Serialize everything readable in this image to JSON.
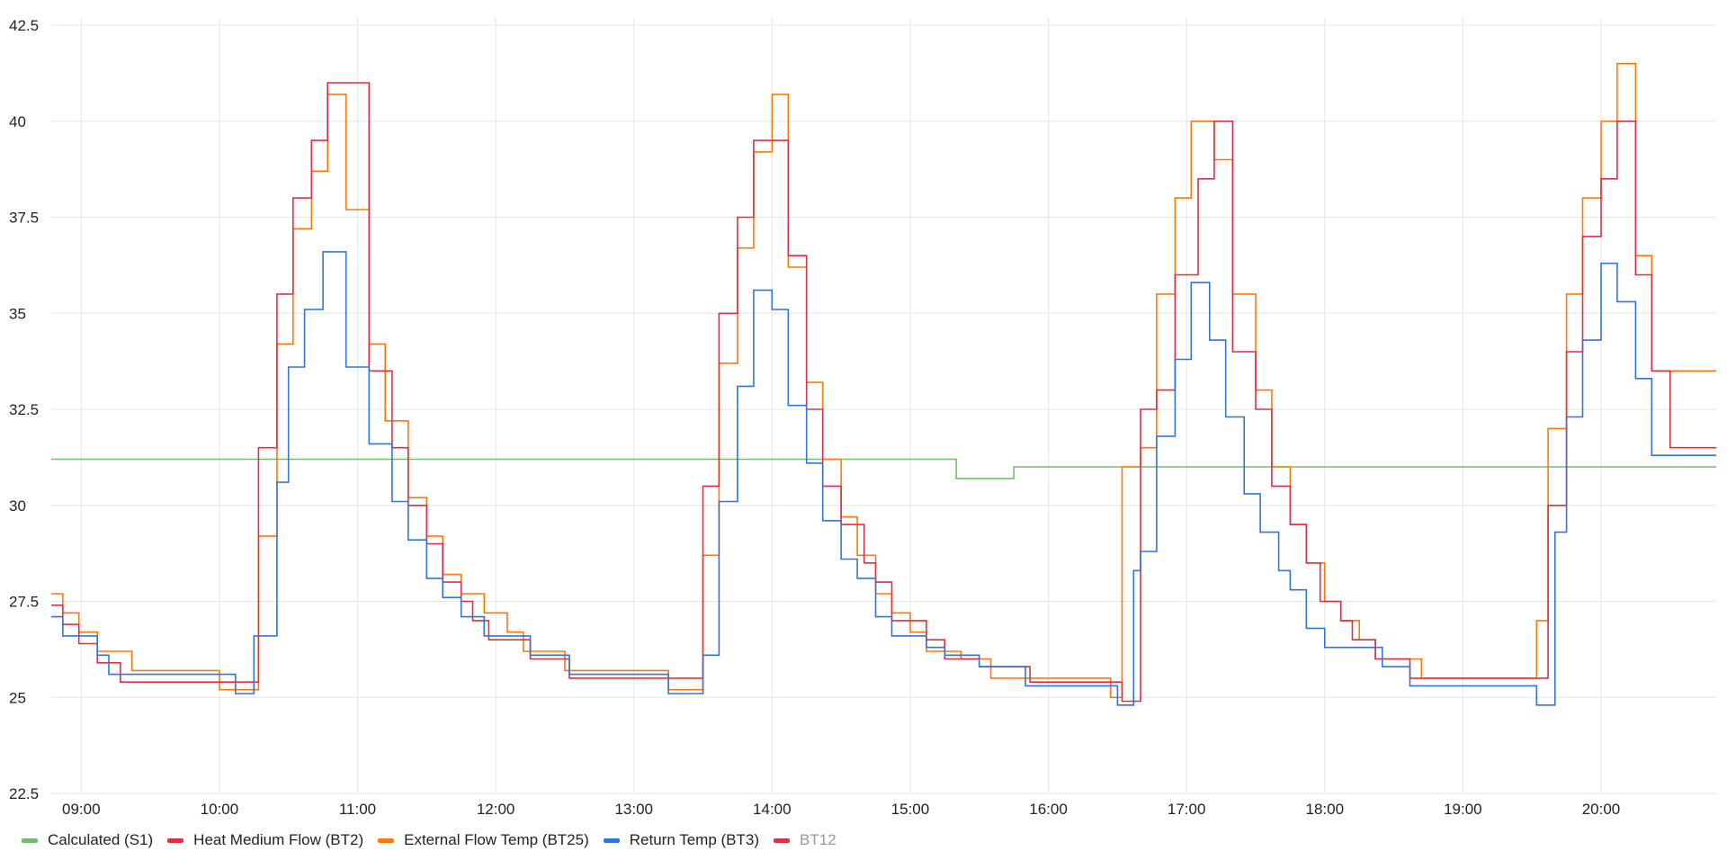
{
  "chart_data": {
    "type": "line",
    "step": true,
    "title": "",
    "xlabel": "",
    "ylabel": "",
    "ylim": [
      22.5,
      42.5
    ],
    "yticks": [
      "22.5",
      "25",
      "27.5",
      "30",
      "32.5",
      "35",
      "37.5",
      "40",
      "42.5"
    ],
    "xlim": [
      "08:47",
      "20:50"
    ],
    "xticks": [
      "09:00",
      "10:00",
      "11:00",
      "12:00",
      "13:00",
      "14:00",
      "15:00",
      "16:00",
      "17:00",
      "18:00",
      "19:00",
      "20:00"
    ],
    "grid": true,
    "legend_position": "bottom-left",
    "series": [
      {
        "name": "Calculated (S1)",
        "color": "#73BF69",
        "points": [
          [
            "08:47",
            31.2
          ],
          [
            "15:20",
            30.7
          ],
          [
            "15:45",
            31.0
          ],
          [
            "20:50",
            31.0
          ]
        ]
      },
      {
        "name": "Heat Medium Flow (BT2)",
        "color": "#E02F44",
        "points": [
          [
            "08:47",
            27.4
          ],
          [
            "08:52",
            26.9
          ],
          [
            "08:59",
            26.4
          ],
          [
            "09:07",
            25.9
          ],
          [
            "09:17",
            25.4
          ],
          [
            "10:17",
            31.5
          ],
          [
            "10:25",
            35.5
          ],
          [
            "10:32",
            38.0
          ],
          [
            "10:40",
            39.5
          ],
          [
            "10:47",
            41.0
          ],
          [
            "10:55",
            41.0
          ],
          [
            "11:05",
            33.5
          ],
          [
            "11:15",
            31.5
          ],
          [
            "11:22",
            30.0
          ],
          [
            "11:30",
            29.0
          ],
          [
            "11:37",
            28.0
          ],
          [
            "11:45",
            27.5
          ],
          [
            "11:50",
            27.0
          ],
          [
            "11:57",
            26.5
          ],
          [
            "12:15",
            26.0
          ],
          [
            "12:32",
            25.5
          ],
          [
            "13:30",
            30.5
          ],
          [
            "13:37",
            35.0
          ],
          [
            "13:45",
            37.5
          ],
          [
            "13:52",
            39.5
          ],
          [
            "14:00",
            39.5
          ],
          [
            "14:07",
            36.5
          ],
          [
            "14:15",
            32.5
          ],
          [
            "14:22",
            30.5
          ],
          [
            "14:30",
            29.5
          ],
          [
            "14:40",
            28.5
          ],
          [
            "14:45",
            28.0
          ],
          [
            "14:52",
            27.0
          ],
          [
            "15:07",
            26.5
          ],
          [
            "15:15",
            26.0
          ],
          [
            "15:30",
            25.8
          ],
          [
            "15:52",
            25.4
          ],
          [
            "16:32",
            24.9
          ],
          [
            "16:40",
            32.5
          ],
          [
            "16:47",
            33.0
          ],
          [
            "16:55",
            36.0
          ],
          [
            "17:05",
            38.5
          ],
          [
            "17:12",
            40.0
          ],
          [
            "17:20",
            34.0
          ],
          [
            "17:30",
            32.5
          ],
          [
            "17:37",
            30.5
          ],
          [
            "17:45",
            29.5
          ],
          [
            "17:52",
            28.5
          ],
          [
            "17:58",
            27.5
          ],
          [
            "18:07",
            27.0
          ],
          [
            "18:12",
            26.5
          ],
          [
            "18:22",
            26.0
          ],
          [
            "18:37",
            25.5
          ],
          [
            "18:52",
            25.5
          ],
          [
            "19:37",
            30.0
          ],
          [
            "19:45",
            34.0
          ],
          [
            "19:52",
            37.0
          ],
          [
            "20:00",
            38.5
          ],
          [
            "20:07",
            40.0
          ],
          [
            "20:15",
            36.0
          ],
          [
            "20:22",
            33.5
          ],
          [
            "20:30",
            31.5
          ],
          [
            "20:50",
            31.5
          ]
        ]
      },
      {
        "name": "External Flow Temp (BT25)",
        "color": "#FF780A",
        "points": [
          [
            "08:47",
            27.7
          ],
          [
            "08:52",
            27.2
          ],
          [
            "08:59",
            26.7
          ],
          [
            "09:07",
            26.2
          ],
          [
            "09:22",
            25.7
          ],
          [
            "10:00",
            25.2
          ],
          [
            "10:17",
            29.2
          ],
          [
            "10:25",
            34.2
          ],
          [
            "10:32",
            37.2
          ],
          [
            "10:40",
            38.7
          ],
          [
            "10:47",
            40.7
          ],
          [
            "10:55",
            37.7
          ],
          [
            "11:05",
            34.2
          ],
          [
            "11:12",
            32.2
          ],
          [
            "11:22",
            30.2
          ],
          [
            "11:30",
            29.2
          ],
          [
            "11:37",
            28.2
          ],
          [
            "11:45",
            27.7
          ],
          [
            "11:55",
            27.2
          ],
          [
            "12:05",
            26.7
          ],
          [
            "12:12",
            26.2
          ],
          [
            "12:30",
            25.7
          ],
          [
            "12:45",
            25.7
          ],
          [
            "13:15",
            25.2
          ],
          [
            "13:30",
            28.7
          ],
          [
            "13:37",
            33.7
          ],
          [
            "13:45",
            36.7
          ],
          [
            "13:52",
            39.2
          ],
          [
            "14:00",
            40.7
          ],
          [
            "14:07",
            36.2
          ],
          [
            "14:15",
            33.2
          ],
          [
            "14:22",
            31.2
          ],
          [
            "14:30",
            29.7
          ],
          [
            "14:37",
            28.7
          ],
          [
            "14:45",
            27.7
          ],
          [
            "14:52",
            27.2
          ],
          [
            "15:00",
            26.7
          ],
          [
            "15:07",
            26.2
          ],
          [
            "15:22",
            26.0
          ],
          [
            "15:35",
            25.5
          ],
          [
            "15:50",
            25.5
          ],
          [
            "16:27",
            25.0
          ],
          [
            "16:32",
            31.0
          ],
          [
            "16:40",
            31.5
          ],
          [
            "16:47",
            35.5
          ],
          [
            "16:55",
            38.0
          ],
          [
            "17:02",
            40.0
          ],
          [
            "17:12",
            39.0
          ],
          [
            "17:20",
            35.5
          ],
          [
            "17:30",
            33.0
          ],
          [
            "17:37",
            31.0
          ],
          [
            "17:45",
            29.5
          ],
          [
            "17:52",
            28.5
          ],
          [
            "18:00",
            27.5
          ],
          [
            "18:07",
            27.0
          ],
          [
            "18:15",
            26.5
          ],
          [
            "18:22",
            26.0
          ],
          [
            "18:42",
            25.5
          ],
          [
            "19:32",
            27.0
          ],
          [
            "19:37",
            32.0
          ],
          [
            "19:45",
            35.5
          ],
          [
            "19:52",
            38.0
          ],
          [
            "20:00",
            40.0
          ],
          [
            "20:07",
            41.5
          ],
          [
            "20:15",
            36.5
          ],
          [
            "20:22",
            33.5
          ],
          [
            "20:50",
            33.5
          ]
        ]
      },
      {
        "name": "Return Temp (BT3)",
        "color": "#3274D9",
        "points": [
          [
            "08:47",
            27.1
          ],
          [
            "08:52",
            26.6
          ],
          [
            "09:00",
            26.6
          ],
          [
            "09:07",
            26.1
          ],
          [
            "09:12",
            25.6
          ],
          [
            "09:20",
            25.6
          ],
          [
            "10:00",
            25.6
          ],
          [
            "10:07",
            25.1
          ],
          [
            "10:15",
            26.6
          ],
          [
            "10:25",
            30.6
          ],
          [
            "10:30",
            33.6
          ],
          [
            "10:37",
            35.1
          ],
          [
            "10:45",
            36.6
          ],
          [
            "10:55",
            33.6
          ],
          [
            "11:05",
            31.6
          ],
          [
            "11:15",
            30.1
          ],
          [
            "11:22",
            29.1
          ],
          [
            "11:30",
            28.1
          ],
          [
            "11:37",
            27.6
          ],
          [
            "11:45",
            27.1
          ],
          [
            "11:55",
            26.6
          ],
          [
            "12:15",
            26.1
          ],
          [
            "12:32",
            25.6
          ],
          [
            "13:00",
            25.6
          ],
          [
            "13:15",
            25.1
          ],
          [
            "13:30",
            26.1
          ],
          [
            "13:37",
            30.1
          ],
          [
            "13:45",
            33.1
          ],
          [
            "13:52",
            35.6
          ],
          [
            "14:00",
            35.1
          ],
          [
            "14:07",
            32.6
          ],
          [
            "14:15",
            31.1
          ],
          [
            "14:22",
            29.6
          ],
          [
            "14:30",
            28.6
          ],
          [
            "14:37",
            28.1
          ],
          [
            "14:45",
            27.1
          ],
          [
            "14:52",
            26.6
          ],
          [
            "15:07",
            26.3
          ],
          [
            "15:15",
            26.1
          ],
          [
            "15:30",
            25.8
          ],
          [
            "15:50",
            25.3
          ],
          [
            "16:30",
            24.8
          ],
          [
            "16:37",
            28.3
          ],
          [
            "16:40",
            28.8
          ],
          [
            "16:47",
            31.8
          ],
          [
            "16:55",
            33.8
          ],
          [
            "17:02",
            35.8
          ],
          [
            "17:10",
            34.3
          ],
          [
            "17:17",
            32.3
          ],
          [
            "17:25",
            30.3
          ],
          [
            "17:32",
            29.3
          ],
          [
            "17:40",
            28.3
          ],
          [
            "17:45",
            27.8
          ],
          [
            "17:52",
            26.8
          ],
          [
            "18:00",
            26.3
          ],
          [
            "18:15",
            26.3
          ],
          [
            "18:25",
            25.8
          ],
          [
            "18:37",
            25.3
          ],
          [
            "18:52",
            25.3
          ],
          [
            "19:32",
            24.8
          ],
          [
            "19:40",
            29.3
          ],
          [
            "19:45",
            32.3
          ],
          [
            "19:52",
            34.3
          ],
          [
            "20:00",
            36.3
          ],
          [
            "20:07",
            35.3
          ],
          [
            "20:15",
            33.3
          ],
          [
            "20:22",
            31.3
          ],
          [
            "20:50",
            31.3
          ]
        ]
      },
      {
        "name": "BT12",
        "color": "#E02F44",
        "hidden": true,
        "points": []
      }
    ]
  }
}
